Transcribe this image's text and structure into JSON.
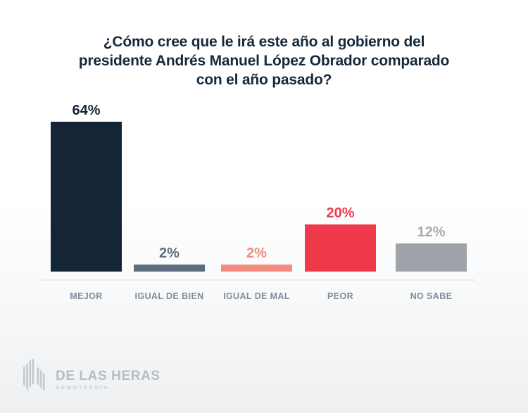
{
  "title": {
    "lines": [
      "¿Cómo cree que le irá este año al gobierno del",
      "presidente Andrés Manuel López Obrador comparado",
      "con el año pasado?"
    ],
    "color": "#16293C"
  },
  "chart_data": {
    "type": "bar",
    "title": "¿Cómo cree que le irá este año al gobierno del presidente Andrés Manuel López Obrador comparado con el año pasado?",
    "categories": [
      "MEJOR",
      "IGUAL DE BIEN",
      "IGUAL DE MAL",
      "PEOR",
      "NO SABE"
    ],
    "values": [
      64,
      2,
      2,
      20,
      12
    ],
    "value_labels": [
      "64%",
      "2%",
      "2%",
      "20%",
      "12%"
    ],
    "bar_colors": [
      "#142538",
      "#5C6E7D",
      "#F28C7E",
      "#EE3A4B",
      "#9EA4AA"
    ],
    "label_colors": [
      "#142538",
      "#5C6E7D",
      "#F28C7E",
      "#EE3A4B",
      "#A6ABB0"
    ],
    "axis_label_color": "#7E8C99",
    "baseline_color": "#E8EAEC",
    "xlabel": "",
    "ylabel": "",
    "ylim": [
      0,
      70
    ],
    "grid": false,
    "legend": false,
    "value_label_position": "above-bar"
  },
  "footer": {
    "brand": "DE LAS HERAS",
    "brand_sub": "DEMOTECNIA",
    "logo_color": "#C2C9CF"
  }
}
